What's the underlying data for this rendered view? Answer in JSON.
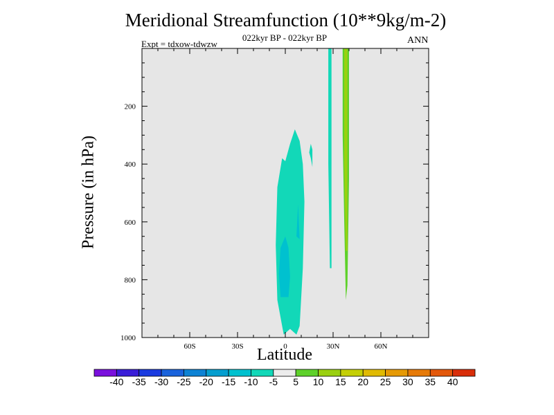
{
  "chart_data": {
    "type": "contour",
    "title": "Meridional Streamfunction (10**9kg/m-2)",
    "subtitle": "022kyr BP - 022kyr BP",
    "experiment": "Expt = tdxow-tdwzw",
    "season": "ANN",
    "xlabel": "Latitude",
    "ylabel": "Pressure (in hPa)",
    "x_ticks": [
      "60S",
      "30S",
      "0",
      "30N",
      "60N"
    ],
    "x_tick_values": [
      -60,
      -30,
      0,
      30,
      60
    ],
    "xlim": [
      -90,
      90
    ],
    "y_ticks": [
      "200",
      "400",
      "600",
      "800",
      "1000"
    ],
    "y_tick_values": [
      200,
      400,
      600,
      800,
      1000
    ],
    "ylim": [
      1000,
      0
    ],
    "y_axis_inverted": true,
    "background_color": "#e6e6e6",
    "colorbar": {
      "labels": [
        "-40",
        "-35",
        "-30",
        "-25",
        "-20",
        "-15",
        "-10",
        "-5",
        "5",
        "10",
        "15",
        "20",
        "25",
        "30",
        "35",
        "40"
      ],
      "colors": [
        "#7a10dd",
        "#3a1ed8",
        "#1a3be0",
        "#1a63dc",
        "#0d82d4",
        "#049ecf",
        "#00c1cf",
        "#12d8b8",
        "#ececec",
        "#5ed12a",
        "#9ad010",
        "#c4cf05",
        "#e0ba03",
        "#e69a05",
        "#e67a08",
        "#e3580b",
        "#d92e0a"
      ]
    },
    "features": [
      {
        "name": "southern-hemisphere-negative-cell",
        "level": "-10 to -5",
        "color": "#12d8b8",
        "outline": [
          [
            -1,
            990
          ],
          [
            -5,
            870
          ],
          [
            -6,
            680
          ],
          [
            -5,
            480
          ],
          [
            -2,
            380
          ],
          [
            0,
            390
          ],
          [
            3,
            330
          ],
          [
            6,
            280
          ],
          [
            9,
            320
          ],
          [
            11,
            400
          ],
          [
            12,
            530
          ],
          [
            11,
            760
          ],
          [
            9,
            960
          ],
          [
            7,
            990
          ],
          [
            3,
            970
          ]
        ]
      },
      {
        "name": "southern-hemisphere-core",
        "level": "-15 to -10",
        "color": "#00c1cf",
        "outline": [
          [
            -3,
            860
          ],
          [
            -4,
            780
          ],
          [
            -3,
            690
          ],
          [
            0,
            650
          ],
          [
            2,
            690
          ],
          [
            3,
            790
          ],
          [
            2,
            860
          ]
        ]
      },
      {
        "name": "southern-inner-strip",
        "level": "-15 to -10",
        "color": "#00c1cf",
        "outline": [
          [
            7,
            650
          ],
          [
            8,
            540
          ],
          [
            9,
            660
          ]
        ]
      },
      {
        "name": "northern-small-negative-patch",
        "level": "-10 to -5",
        "color": "#12d8b8",
        "outline": [
          [
            16,
            330
          ],
          [
            17,
            350
          ],
          [
            17,
            410
          ],
          [
            16,
            380
          ],
          [
            15,
            360
          ]
        ]
      },
      {
        "name": "northern-negative-column",
        "level": "-10 to -5",
        "color": "#12d8b8",
        "outline": [
          [
            27,
            0
          ],
          [
            29,
            0
          ],
          [
            29,
            760
          ],
          [
            28,
            760
          ],
          [
            27,
            400
          ]
        ]
      },
      {
        "name": "northern-positive-column",
        "level": "5 to 10",
        "color": "#5ed12a",
        "outline": [
          [
            36,
            0
          ],
          [
            40,
            0
          ],
          [
            40,
            450
          ],
          [
            39,
            820
          ],
          [
            38,
            870
          ],
          [
            37,
            600
          ],
          [
            36,
            300
          ]
        ]
      },
      {
        "name": "northern-positive-core",
        "level": "10 to 15",
        "color": "#9ad010",
        "outline": [
          [
            37,
            0
          ],
          [
            39,
            0
          ],
          [
            39,
            700
          ],
          [
            38,
            700
          ],
          [
            37,
            400
          ]
        ]
      }
    ]
  }
}
